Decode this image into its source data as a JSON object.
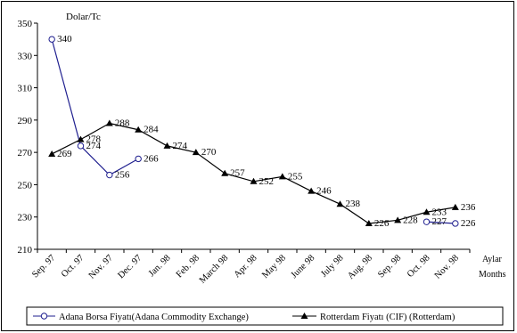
{
  "chart_data": {
    "type": "line",
    "y_unit_label": "Dolar/Tc",
    "x_axis_label_1": "Aylar",
    "x_axis_label_2": "Months",
    "categories": [
      "Sep. 97",
      "Oct. 97",
      "Nov. 97",
      "Dec. 97",
      "Jan. 98",
      "Feb. 98",
      "March 98",
      "Apr. 98",
      "May 98",
      "June 98",
      "July 98",
      "Aug. 98",
      "Sep. 98",
      "Oct. 98",
      "Nov. 98"
    ],
    "ylim": [
      210,
      350
    ],
    "yticks": [
      210,
      230,
      250,
      270,
      290,
      310,
      330,
      350
    ],
    "grid": false,
    "legend_position": "bottom",
    "series": [
      {
        "name": "Adana Borsa Fiyatı(Adana Commodity Exchange)",
        "marker": "circle-open",
        "color": "#1f1f8f",
        "values": [
          340,
          274,
          256,
          266,
          null,
          null,
          null,
          null,
          null,
          null,
          null,
          null,
          null,
          227,
          226
        ]
      },
      {
        "name": "Rotterdam Fiyatı (CIF) (Rotterdam)",
        "marker": "triangle-filled",
        "color": "#000000",
        "values": [
          269,
          278,
          288,
          284,
          274,
          270,
          257,
          252,
          255,
          246,
          238,
          226,
          228,
          233,
          236
        ]
      }
    ]
  }
}
